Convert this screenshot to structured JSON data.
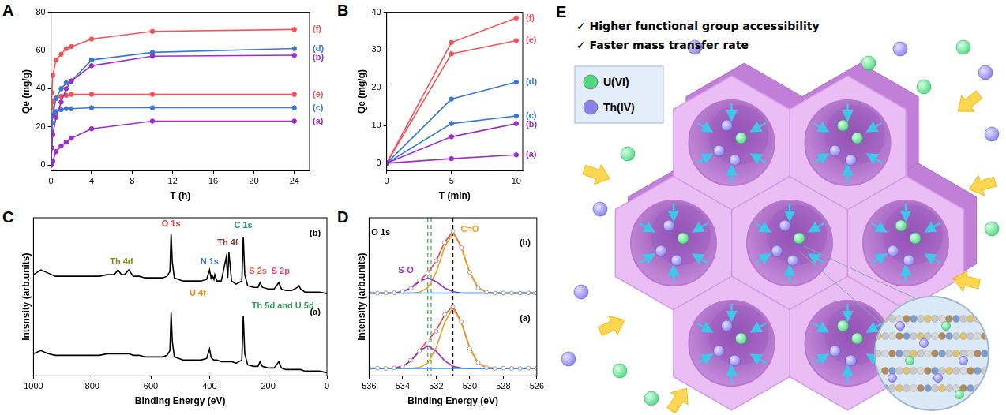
{
  "chart_data": [
    {
      "panel_label": "A",
      "type": "line",
      "x_label": "T (h)",
      "y_label": "Qe (mg/g)",
      "x": [
        0,
        0.08,
        0.17,
        0.5,
        1,
        1.5,
        2,
        4,
        10,
        24
      ],
      "series": [
        {
          "name": "(a)",
          "color": "#9b30c9",
          "marker": "circle",
          "line_style": "solid",
          "values": [
            0,
            1,
            2,
            7,
            10,
            12,
            14,
            19,
            23,
            23
          ]
        },
        {
          "name": "(b)",
          "color": "#9b30c9",
          "marker": "circle",
          "line_style": "solid",
          "values": [
            0,
            9,
            16,
            25,
            33,
            40,
            44,
            52,
            57,
            57.5
          ]
        },
        {
          "name": "(c)",
          "color": "#3b78d4",
          "marker": "circle",
          "line_style": "solid",
          "values": [
            0,
            22,
            26,
            28,
            29,
            29.5,
            29.5,
            30,
            30,
            30
          ]
        },
        {
          "name": "(d)",
          "color": "#3b78d4",
          "marker": "circle",
          "line_style": "solid",
          "values": [
            0,
            17,
            26,
            35,
            40,
            43,
            44,
            55,
            59,
            61
          ]
        },
        {
          "name": "(e)",
          "color": "#f2545b",
          "marker": "circle",
          "line_style": "solid",
          "values": [
            0,
            30,
            33,
            35,
            36,
            36.5,
            37,
            37,
            37,
            37
          ]
        },
        {
          "name": "(f)",
          "color": "#f2545b",
          "marker": "circle",
          "line_style": "solid",
          "values": [
            0,
            38,
            47,
            55,
            58,
            61,
            62,
            66,
            70,
            71
          ]
        }
      ],
      "xlim": [
        0,
        25.5
      ],
      "xticks": [
        0,
        4,
        8,
        12,
        16,
        20,
        24
      ],
      "ylim": [
        -3,
        80
      ],
      "yticks": [
        0,
        20,
        40,
        60,
        80
      ],
      "grid": false
    },
    {
      "panel_label": "B",
      "type": "line",
      "x_label": "T (min)",
      "y_label": "Qe (mg/g)",
      "x": [
        0,
        5,
        10
      ],
      "series": [
        {
          "name": "(a)",
          "color": "#9b30c9",
          "marker": "circle",
          "line_style": "solid",
          "values": [
            0,
            1.2,
            2.2
          ]
        },
        {
          "name": "(b)",
          "color": "#9b30c9",
          "marker": "circle",
          "line_style": "solid",
          "values": [
            0,
            7,
            10.5
          ]
        },
        {
          "name": "(c)",
          "color": "#3b78d4",
          "marker": "circle",
          "line_style": "solid",
          "values": [
            0,
            10.5,
            12.5
          ]
        },
        {
          "name": "(d)",
          "color": "#3b78d4",
          "marker": "circle",
          "line_style": "solid",
          "values": [
            0,
            17,
            21.5
          ]
        },
        {
          "name": "(e)",
          "color": "#f2545b",
          "marker": "circle",
          "line_style": "solid",
          "values": [
            0,
            29,
            32.5
          ]
        },
        {
          "name": "(f)",
          "color": "#f2545b",
          "marker": "circle",
          "line_style": "solid",
          "values": [
            0,
            32,
            38.5
          ]
        }
      ],
      "xlim": [
        0,
        10.5
      ],
      "xticks": [
        0,
        5,
        10
      ],
      "ylim": [
        -2,
        40
      ],
      "yticks": [
        0,
        10,
        20,
        30,
        40
      ],
      "grid": false
    },
    {
      "panel_label": "C",
      "type": "line",
      "x_label": "Binding Energy (eV)",
      "y_label": "Intsnsity (arb.units)",
      "x": [
        1000,
        975,
        950,
        925,
        900,
        875,
        850,
        825,
        800,
        775,
        750,
        725,
        712,
        700,
        690,
        675,
        660,
        640,
        620,
        600,
        580,
        560,
        545,
        535,
        531,
        527,
        520,
        505,
        490,
        470,
        450,
        430,
        410,
        400,
        395,
        392,
        385,
        382,
        375,
        360,
        343,
        338,
        334,
        325,
        310,
        290,
        285,
        280,
        270,
        250,
        235,
        228,
        220,
        200,
        180,
        164,
        155,
        140,
        120,
        100,
        95,
        90,
        75,
        50,
        25,
        0
      ],
      "series": [
        {
          "color": "#000000",
          "marker": "none",
          "line_style": "solid",
          "values": [
            14,
            16,
            14,
            13,
            13,
            13,
            13,
            13,
            13,
            13,
            14,
            14,
            14,
            14,
            14,
            14,
            13,
            13,
            12,
            12,
            12,
            12,
            13,
            16,
            40,
            22,
            12,
            11,
            10,
            10,
            10,
            10,
            11,
            17,
            12,
            11,
            10,
            10,
            10,
            9,
            9,
            9,
            9,
            9,
            8,
            10,
            38,
            14,
            7,
            6,
            6,
            9,
            6,
            5,
            5,
            9,
            5,
            4,
            4,
            4,
            4,
            4,
            3,
            3,
            3,
            2
          ]
        },
        {
          "color": "#000000",
          "marker": "none",
          "line_style": "solid",
          "values": [
            64,
            67,
            65,
            63,
            63,
            63,
            63,
            63,
            63,
            63,
            64,
            64,
            67,
            64,
            64,
            67,
            63,
            63,
            62,
            62,
            62,
            62,
            63,
            66,
            90,
            72,
            62,
            61,
            60,
            60,
            60,
            60,
            61,
            67,
            62,
            64,
            61,
            64,
            60,
            60,
            75,
            62,
            78,
            60,
            58,
            60,
            88,
            64,
            57,
            56,
            56,
            59,
            56,
            55,
            55,
            59,
            55,
            54,
            54,
            56,
            57,
            55,
            53,
            53,
            53,
            52
          ]
        }
      ],
      "annotations": [
        {
          "text": "O 1s",
          "x": 531,
          "y": 96,
          "color": "#d63b2f"
        },
        {
          "text": "C 1s",
          "x": 285,
          "y": 95,
          "color": "#1f8f80"
        },
        {
          "text": "Th 4f",
          "x": 338,
          "y": 84,
          "color": "#7a3b2e"
        },
        {
          "text": "N 1s",
          "x": 400,
          "y": 72,
          "color": "#3b6fd4"
        },
        {
          "text": "Th 4d",
          "x": 700,
          "y": 72,
          "color": "#8a8a1e"
        },
        {
          "text": "U 4f",
          "x": 440,
          "y": 52,
          "color": "#e38b12"
        },
        {
          "text": "S 2s",
          "x": 235,
          "y": 66,
          "color": "#e8604a"
        },
        {
          "text": "S 2p",
          "x": 158,
          "y": 66,
          "color": "#e0457a"
        },
        {
          "text": "Th 5d and U 5d",
          "x": 150,
          "y": 44,
          "color": "#2e9e5a"
        },
        {
          "text": "(b)",
          "x": 40,
          "y": 90,
          "color": "#000000"
        },
        {
          "text": "(a)",
          "x": 40,
          "y": 40,
          "color": "#000000"
        }
      ],
      "xlim": [
        1000,
        0
      ],
      "xticks": [
        1000,
        800,
        600,
        400,
        200,
        0
      ],
      "ylim": [
        0,
        100
      ],
      "grid": false,
      "tick_labels": "x"
    },
    {
      "panel_label": "D",
      "type": "line",
      "x_label": "Binding Energy (eV)",
      "y_label": "Intensity (arb.units)",
      "x": [
        536,
        535.5,
        535,
        534.5,
        534,
        533.5,
        533,
        532.5,
        532,
        531.5,
        531,
        530.5,
        530,
        529.5,
        529,
        528.5,
        528,
        527.5,
        527,
        526.5,
        526
      ],
      "series": [
        {
          "color": "#9e9e9e",
          "marker": "open_circle",
          "line_style": "none",
          "values": [
            5.2,
            5.1,
            4.9,
            5.3,
            6.1,
            10.4,
            16.6,
            23.8,
            29.7,
            40.9,
            46.0,
            35.9,
            18.3,
            8.8,
            5.4,
            4.9,
            5.1,
            5,
            4.9,
            5.1,
            5
          ]
        },
        {
          "color": "#3b8fd4",
          "marker": "none",
          "line_style": "solid",
          "values": [
            5,
            5,
            5,
            5,
            5,
            5,
            5,
            5,
            5,
            5,
            5,
            5,
            5,
            5,
            5,
            5,
            5,
            5,
            5,
            5,
            5
          ]
        },
        {
          "color": "#9b30c9",
          "marker": "none",
          "line_style": "solid",
          "values": [
            5,
            5,
            5,
            5.2,
            6.3,
            10.1,
            16.4,
            20,
            16.4,
            10.1,
            6.3,
            5.2,
            5,
            5,
            5,
            5,
            5,
            5,
            5,
            5,
            5
          ]
        },
        {
          "color": "#f39c1e",
          "marker": "none",
          "line_style": "solid",
          "values": [
            5,
            5,
            5,
            5,
            5,
            5,
            5.5,
            8.5,
            18.6,
            35.4,
            45,
            35.4,
            18.6,
            8.5,
            5.5,
            5,
            5,
            5,
            5,
            5,
            5
          ]
        },
        {
          "color": "#e8454a",
          "marker": "none",
          "line_style": "solid",
          "values": [
            5,
            5,
            5,
            5.2,
            6.3,
            10.1,
            16.9,
            23.5,
            30,
            40.5,
            46.3,
            35.6,
            18.6,
            8.5,
            5.5,
            5,
            5,
            5,
            5,
            5,
            5
          ]
        },
        {
          "color": "#9e9e9e",
          "marker": "open_circle",
          "line_style": "none",
          "values": [
            55.2,
            54.9,
            55.1,
            55.2,
            56.1,
            58.2,
            63.4,
            68.2,
            76.5,
            88.5,
            96.1,
            85.2,
            68.9,
            58.3,
            55.6,
            54.9,
            55.1,
            55,
            54.9,
            55.1,
            55
          ]
        },
        {
          "color": "#3b8fd4",
          "marker": "none",
          "line_style": "solid",
          "values": [
            55,
            55,
            55,
            55,
            55,
            55,
            55,
            55,
            55,
            55,
            55,
            55,
            55,
            55,
            55,
            55,
            55,
            55,
            55,
            55,
            55
          ]
        },
        {
          "color": "#9b30c9",
          "marker": "none",
          "line_style": "solid",
          "values": [
            55,
            55,
            55,
            55.1,
            55.9,
            58.4,
            62.6,
            65,
            62.6,
            58.4,
            55.9,
            55.1,
            55,
            55,
            55,
            55,
            55,
            55,
            55,
            55,
            55
          ]
        },
        {
          "color": "#f39c1e",
          "marker": "none",
          "line_style": "solid",
          "values": [
            55,
            55,
            55,
            55,
            55,
            55,
            55.5,
            58.5,
            68.6,
            85.4,
            95,
            85.4,
            68.6,
            58.5,
            55.5,
            55,
            55,
            55,
            55,
            55,
            55
          ]
        },
        {
          "color": "#e8454a",
          "marker": "none",
          "line_style": "solid",
          "values": [
            55,
            55,
            55,
            55.1,
            55.9,
            58.4,
            63.1,
            68.5,
            76.2,
            88.8,
            95.9,
            85.5,
            68.6,
            58.5,
            55.5,
            55,
            55,
            55,
            55,
            55,
            55
          ]
        }
      ],
      "reference_lines": [
        {
          "x": 532.5,
          "color": "#3aa655",
          "line_style": "dashed"
        },
        {
          "x": 532.3,
          "color": "#3aa655",
          "line_style": "dashed"
        },
        {
          "x": 531.0,
          "color": "#000000",
          "line_style": "dashed"
        }
      ],
      "annotations": [
        {
          "text": "O 1s",
          "x": 535.3,
          "y": 95,
          "color": "#000000"
        },
        {
          "text": "S-O",
          "x": 533.8,
          "y": 70,
          "color": "#9b30c9"
        },
        {
          "text": "C=O",
          "x": 530.0,
          "y": 97,
          "color": "#f39c1e"
        },
        {
          "text": "(b)",
          "x": 526.7,
          "y": 88,
          "color": "#000000"
        },
        {
          "text": "(a)",
          "x": 526.7,
          "y": 38,
          "color": "#000000"
        }
      ],
      "xlim": [
        536,
        526
      ],
      "xticks": [
        536,
        534,
        532,
        530,
        528,
        526
      ],
      "ylim": [
        0,
        105
      ],
      "grid": false,
      "tick_labels": "x"
    }
  ],
  "diagram": {
    "panel_label": "E",
    "checks": [
      "✓ Higher functional group accessibility",
      "✓ Faster mass transfer rate"
    ],
    "species": [
      {
        "label": "U(VI)",
        "color": "#4fd880"
      },
      {
        "label": "Th(IV)",
        "color": "#8a80ee"
      }
    ]
  }
}
